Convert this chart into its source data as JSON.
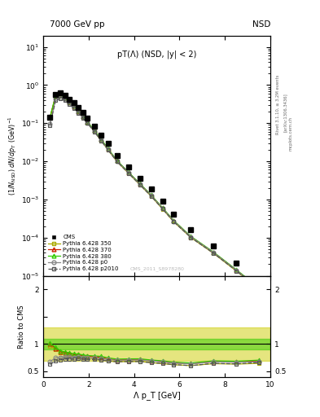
{
  "title_left": "7000 GeV pp",
  "title_right": "NSD",
  "plot_title": "pT(Λ) (NSD, |y| < 2)",
  "xlabel": "Λ p_T [GeV]",
  "ylabel_top": "(1/N_{NSD}) dN/dp_T (GeV)⁻¹",
  "ylabel_bottom": "Ratio to CMS",
  "watermark": "CMS_2011_S8978280",
  "rivet_label": "Rivet 3.1.10, ≥ 3.2M events",
  "arxiv_label": "[arXiv:1306.3436]",
  "mcplots_label": "mcplots.cern.ch",
  "xlim": [
    0,
    10
  ],
  "cms_x": [
    0.3,
    0.55,
    0.75,
    0.95,
    1.15,
    1.35,
    1.55,
    1.75,
    1.95,
    2.25,
    2.55,
    2.85,
    3.25,
    3.75,
    4.25,
    4.75,
    5.25,
    5.75,
    6.5,
    7.5,
    8.5,
    9.5
  ],
  "cms_y": [
    0.14,
    0.58,
    0.62,
    0.54,
    0.43,
    0.34,
    0.255,
    0.19,
    0.138,
    0.083,
    0.049,
    0.029,
    0.0145,
    0.0072,
    0.0036,
    0.00185,
    0.00088,
    0.000415,
    0.000165,
    6e-05,
    2.1e-05,
    6.8e-06
  ],
  "p350_x": [
    0.3,
    0.55,
    0.75,
    0.95,
    1.15,
    1.35,
    1.55,
    1.75,
    1.95,
    2.25,
    2.55,
    2.85,
    3.25,
    3.75,
    4.25,
    4.75,
    5.25,
    5.75,
    6.5,
    7.5,
    8.5,
    9.5
  ],
  "p350_y": [
    0.135,
    0.52,
    0.52,
    0.44,
    0.345,
    0.265,
    0.198,
    0.143,
    0.103,
    0.061,
    0.035,
    0.02,
    0.0098,
    0.0049,
    0.00245,
    0.00122,
    0.000565,
    0.000258,
    0.0001,
    3.85e-05,
    1.33e-05,
    4.4e-06
  ],
  "p370_x": [
    0.3,
    0.55,
    0.75,
    0.95,
    1.15,
    1.35,
    1.55,
    1.75,
    1.95,
    2.25,
    2.55,
    2.85,
    3.25,
    3.75,
    4.25,
    4.75,
    5.25,
    5.75,
    6.5,
    7.5,
    8.5,
    9.5
  ],
  "p370_y": [
    0.14,
    0.535,
    0.535,
    0.455,
    0.358,
    0.274,
    0.206,
    0.149,
    0.107,
    0.064,
    0.037,
    0.0212,
    0.0103,
    0.00515,
    0.00258,
    0.00129,
    0.000598,
    0.000273,
    0.000106,
    4.08e-05,
    1.41e-05,
    4.7e-06
  ],
  "p380_x": [
    0.3,
    0.55,
    0.75,
    0.95,
    1.15,
    1.35,
    1.55,
    1.75,
    1.95,
    2.25,
    2.55,
    2.85,
    3.25,
    3.75,
    4.25,
    4.75,
    5.25,
    5.75,
    6.5,
    7.5,
    8.5,
    9.5
  ],
  "p380_y": [
    0.143,
    0.545,
    0.545,
    0.463,
    0.363,
    0.279,
    0.209,
    0.152,
    0.109,
    0.065,
    0.038,
    0.0217,
    0.0105,
    0.00525,
    0.00263,
    0.00131,
    0.00061,
    0.000278,
    0.000108,
    4.16e-05,
    1.44e-05,
    4.8e-06
  ],
  "pp0_x": [
    0.3,
    0.55,
    0.75,
    0.95,
    1.15,
    1.35,
    1.55,
    1.75,
    1.95,
    2.25,
    2.55,
    2.85,
    3.25,
    3.75,
    4.25,
    4.75,
    5.25,
    5.75,
    6.5,
    7.5,
    8.5,
    9.5
  ],
  "pp0_y": [
    0.095,
    0.435,
    0.47,
    0.415,
    0.33,
    0.258,
    0.196,
    0.143,
    0.103,
    0.062,
    0.036,
    0.0208,
    0.0102,
    0.0051,
    0.00255,
    0.00128,
    0.000592,
    0.00027,
    0.000105,
    4.04e-05,
    1.4e-05,
    4.6e-06
  ],
  "pp2010_x": [
    0.3,
    0.55,
    0.75,
    0.95,
    1.15,
    1.35,
    1.55,
    1.75,
    1.95,
    2.25,
    2.55,
    2.85,
    3.25,
    3.75,
    4.25,
    4.75,
    5.25,
    5.75,
    6.5,
    7.5,
    8.5,
    9.5
  ],
  "pp2010_y": [
    0.088,
    0.4,
    0.44,
    0.392,
    0.313,
    0.245,
    0.187,
    0.137,
    0.099,
    0.0595,
    0.0347,
    0.02,
    0.0098,
    0.0049,
    0.00245,
    0.00122,
    0.000568,
    0.000259,
    0.0001,
    3.88e-05,
    1.34e-05,
    4.5e-06
  ],
  "color_cms": "#000000",
  "color_p350": "#aaaa00",
  "color_p370": "#cc2200",
  "color_p380": "#33cc00",
  "color_pp0": "#888888",
  "color_pp2010": "#555555",
  "band_inner_color": "#33cc00",
  "band_outer_color": "#cccc00",
  "band_inner_alpha": 0.5,
  "band_outer_alpha": 0.5,
  "band_inner_low": 0.9,
  "band_inner_high": 1.1,
  "band_outer_low": 0.7,
  "band_outer_high": 1.3
}
